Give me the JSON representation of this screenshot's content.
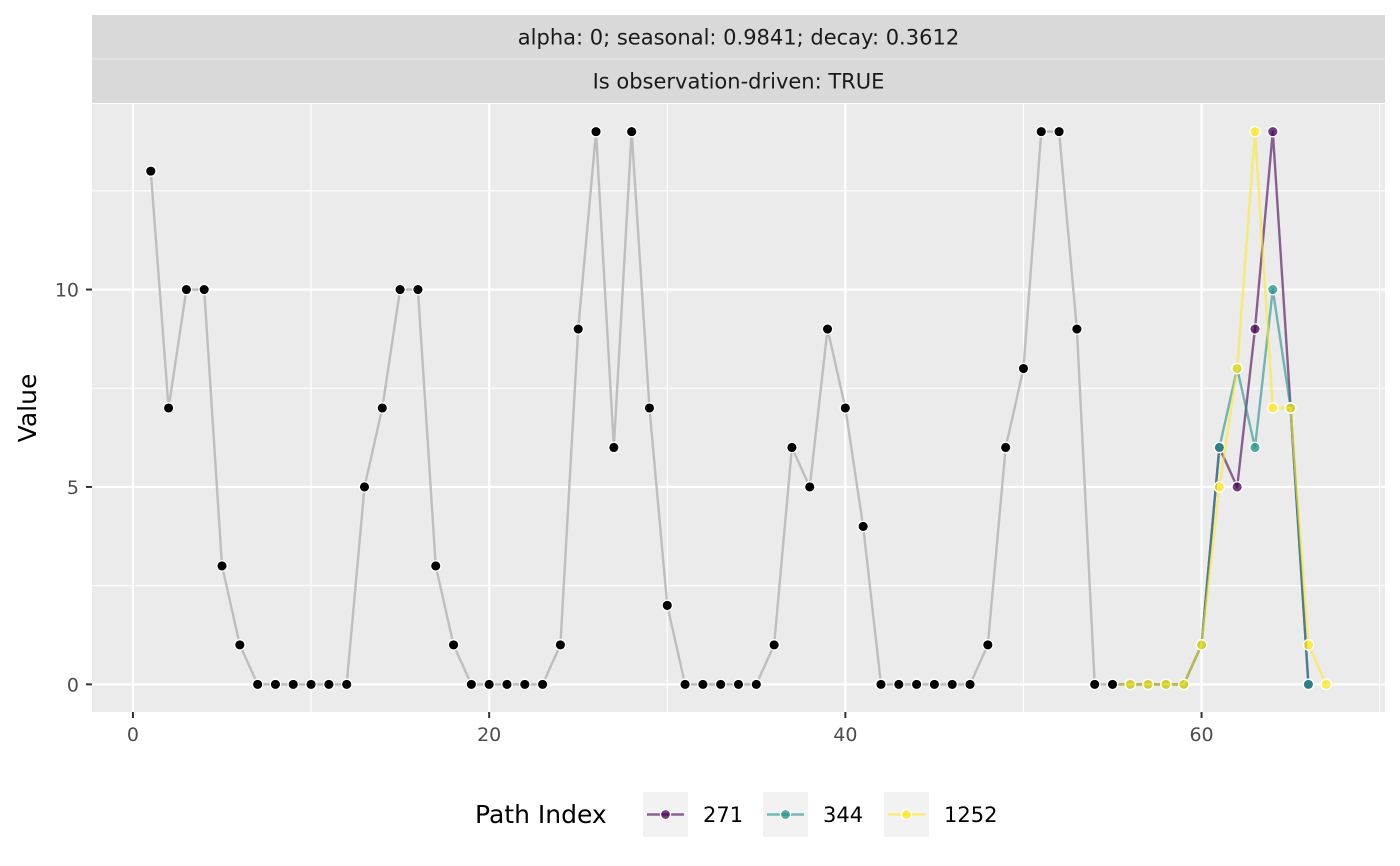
{
  "chart_data": {
    "type": "line",
    "strip_labels": [
      "alpha: 0; seasonal: 0.9841; decay: 0.3612",
      "Is observation-driven: TRUE"
    ],
    "xlabel": "",
    "ylabel": "Value",
    "xlim": [
      -2.3,
      70.3
    ],
    "ylim": [
      -0.7,
      14.7
    ],
    "x_ticks": [
      0,
      20,
      40,
      60
    ],
    "x_tick_labels": [
      "0",
      "20",
      "40",
      "60"
    ],
    "y_ticks": [
      0,
      5,
      10
    ],
    "y_tick_labels": [
      "0",
      "5",
      "10"
    ],
    "grid": true,
    "legend_position": "bottom",
    "legend_title": "Path Index",
    "observed": {
      "color": "#bebebe",
      "point_color": "#000000",
      "x": [
        1,
        2,
        3,
        4,
        5,
        6,
        7,
        8,
        9,
        10,
        11,
        12,
        13,
        14,
        15,
        16,
        17,
        18,
        19,
        20,
        21,
        22,
        23,
        24,
        25,
        26,
        27,
        28,
        29,
        30,
        31,
        32,
        33,
        34,
        35,
        36,
        37,
        38,
        39,
        40,
        41,
        42,
        43,
        44,
        45,
        46,
        47,
        48,
        49,
        50,
        51,
        52,
        53,
        54,
        55
      ],
      "y": [
        13,
        7,
        10,
        10,
        3,
        1,
        0,
        0,
        0,
        0,
        0,
        0,
        5,
        7,
        10,
        10,
        3,
        1,
        0,
        0,
        0,
        0,
        0,
        1,
        9,
        14,
        6,
        14,
        7,
        2,
        0,
        0,
        0,
        0,
        0,
        1,
        6,
        5,
        9,
        7,
        4,
        0,
        0,
        0,
        0,
        0,
        0,
        1,
        6,
        8,
        14,
        14,
        9,
        0,
        0
      ]
    },
    "series": [
      {
        "name": "271",
        "color": "#440154",
        "x": [
          55,
          56,
          57,
          58,
          59,
          60,
          61,
          62,
          63,
          64,
          65,
          66
        ],
        "y": [
          0,
          0,
          0,
          0,
          0,
          1,
          6,
          5,
          9,
          14,
          7,
          0
        ]
      },
      {
        "name": "344",
        "color": "#21908c",
        "x": [
          55,
          56,
          57,
          58,
          59,
          60,
          61,
          62,
          63,
          64,
          65,
          66
        ],
        "y": [
          0,
          0,
          0,
          0,
          0,
          1,
          6,
          8,
          6,
          10,
          7,
          0
        ]
      },
      {
        "name": "1252",
        "color": "#fde725",
        "x": [
          55,
          56,
          57,
          58,
          59,
          60,
          61,
          62,
          63,
          64,
          65,
          66,
          67
        ],
        "y": [
          0,
          0,
          0,
          0,
          0,
          1,
          5,
          8,
          14,
          7,
          7,
          1,
          0
        ]
      }
    ]
  }
}
